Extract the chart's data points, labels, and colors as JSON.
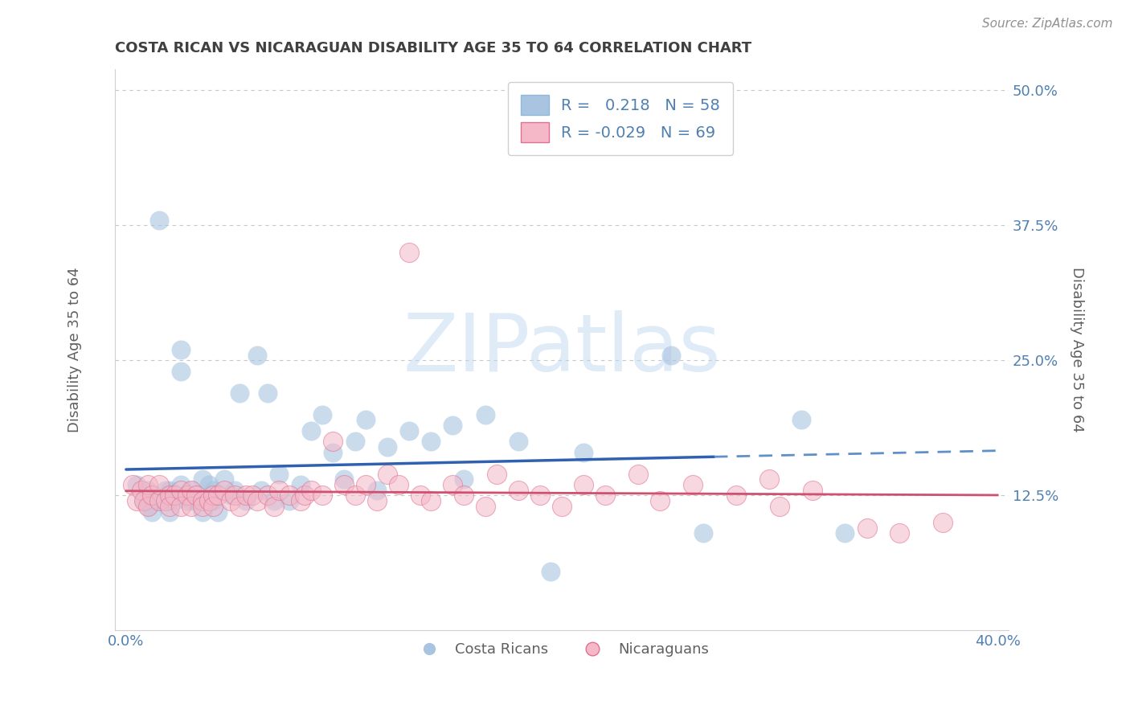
{
  "title": "COSTA RICAN VS NICARAGUAN DISABILITY AGE 35 TO 64 CORRELATION CHART",
  "source": "Source: ZipAtlas.com",
  "xlabel": "",
  "ylabel": "Disability Age 35 to 64",
  "xlim": [
    -0.005,
    0.405
  ],
  "ylim": [
    0.0,
    0.52
  ],
  "xticks": [
    0.0,
    0.1,
    0.2,
    0.3,
    0.4
  ],
  "xticklabels": [
    "0.0%",
    "",
    "",
    "",
    "40.0%"
  ],
  "yticks": [
    0.0,
    0.125,
    0.25,
    0.375,
    0.5
  ],
  "yticklabels_right": [
    "",
    "12.5%",
    "25.0%",
    "37.5%",
    "50.0%"
  ],
  "grid_color": "#c8c8c8",
  "background_color": "#ffffff",
  "blue_color": "#a8c4e0",
  "blue_edge_color": "#a8c4e0",
  "blue_line_color": "#3060b0",
  "blue_line_dashed_color": "#6090c8",
  "pink_color": "#f4b8c8",
  "pink_edge_color": "#e07090",
  "pink_line_color": "#d05070",
  "legend_R1": "0.218",
  "legend_N1": "58",
  "legend_R2": "-0.029",
  "legend_N2": "69",
  "legend_label1": "Costa Ricans",
  "legend_label2": "Nicaraguans",
  "title_color": "#404040",
  "axis_label_color": "#606060",
  "tick_color": "#5080b0",
  "watermark_text": "ZIPatlas",
  "watermark_color": "#c0d8f0",
  "blue_scatter_x": [
    0.005,
    0.008,
    0.01,
    0.01,
    0.012,
    0.015,
    0.015,
    0.018,
    0.02,
    0.02,
    0.02,
    0.02,
    0.022,
    0.025,
    0.025,
    0.025,
    0.028,
    0.03,
    0.03,
    0.032,
    0.035,
    0.035,
    0.038,
    0.04,
    0.04,
    0.042,
    0.045,
    0.048,
    0.05,
    0.052,
    0.055,
    0.06,
    0.062,
    0.065,
    0.068,
    0.07,
    0.075,
    0.08,
    0.085,
    0.09,
    0.095,
    0.1,
    0.105,
    0.11,
    0.115,
    0.12,
    0.13,
    0.14,
    0.15,
    0.155,
    0.165,
    0.18,
    0.195,
    0.21,
    0.25,
    0.265,
    0.31,
    0.33
  ],
  "blue_scatter_y": [
    0.135,
    0.12,
    0.115,
    0.13,
    0.11,
    0.38,
    0.12,
    0.13,
    0.12,
    0.11,
    0.125,
    0.13,
    0.12,
    0.24,
    0.26,
    0.135,
    0.12,
    0.12,
    0.13,
    0.12,
    0.14,
    0.11,
    0.135,
    0.12,
    0.13,
    0.11,
    0.14,
    0.125,
    0.13,
    0.22,
    0.12,
    0.255,
    0.13,
    0.22,
    0.12,
    0.145,
    0.12,
    0.135,
    0.185,
    0.2,
    0.165,
    0.14,
    0.175,
    0.195,
    0.13,
    0.17,
    0.185,
    0.175,
    0.19,
    0.14,
    0.2,
    0.175,
    0.055,
    0.165,
    0.255,
    0.09,
    0.195,
    0.09
  ],
  "pink_scatter_x": [
    0.003,
    0.005,
    0.007,
    0.008,
    0.01,
    0.01,
    0.012,
    0.015,
    0.015,
    0.018,
    0.02,
    0.02,
    0.022,
    0.025,
    0.025,
    0.028,
    0.03,
    0.03,
    0.032,
    0.035,
    0.035,
    0.038,
    0.04,
    0.04,
    0.042,
    0.045,
    0.048,
    0.05,
    0.052,
    0.055,
    0.058,
    0.06,
    0.065,
    0.068,
    0.07,
    0.075,
    0.08,
    0.082,
    0.085,
    0.09,
    0.095,
    0.1,
    0.105,
    0.11,
    0.115,
    0.12,
    0.125,
    0.13,
    0.135,
    0.14,
    0.15,
    0.155,
    0.165,
    0.17,
    0.18,
    0.19,
    0.2,
    0.21,
    0.22,
    0.235,
    0.245,
    0.26,
    0.28,
    0.295,
    0.3,
    0.315,
    0.34,
    0.355,
    0.375
  ],
  "pink_scatter_y": [
    0.135,
    0.12,
    0.13,
    0.12,
    0.115,
    0.135,
    0.125,
    0.12,
    0.135,
    0.12,
    0.125,
    0.115,
    0.125,
    0.13,
    0.115,
    0.125,
    0.13,
    0.115,
    0.125,
    0.12,
    0.115,
    0.12,
    0.125,
    0.115,
    0.125,
    0.13,
    0.12,
    0.125,
    0.115,
    0.125,
    0.125,
    0.12,
    0.125,
    0.115,
    0.13,
    0.125,
    0.12,
    0.125,
    0.13,
    0.125,
    0.175,
    0.135,
    0.125,
    0.135,
    0.12,
    0.145,
    0.135,
    0.35,
    0.125,
    0.12,
    0.135,
    0.125,
    0.115,
    0.145,
    0.13,
    0.125,
    0.115,
    0.135,
    0.125,
    0.145,
    0.12,
    0.135,
    0.125,
    0.14,
    0.115,
    0.13,
    0.095,
    0.09,
    0.1
  ]
}
